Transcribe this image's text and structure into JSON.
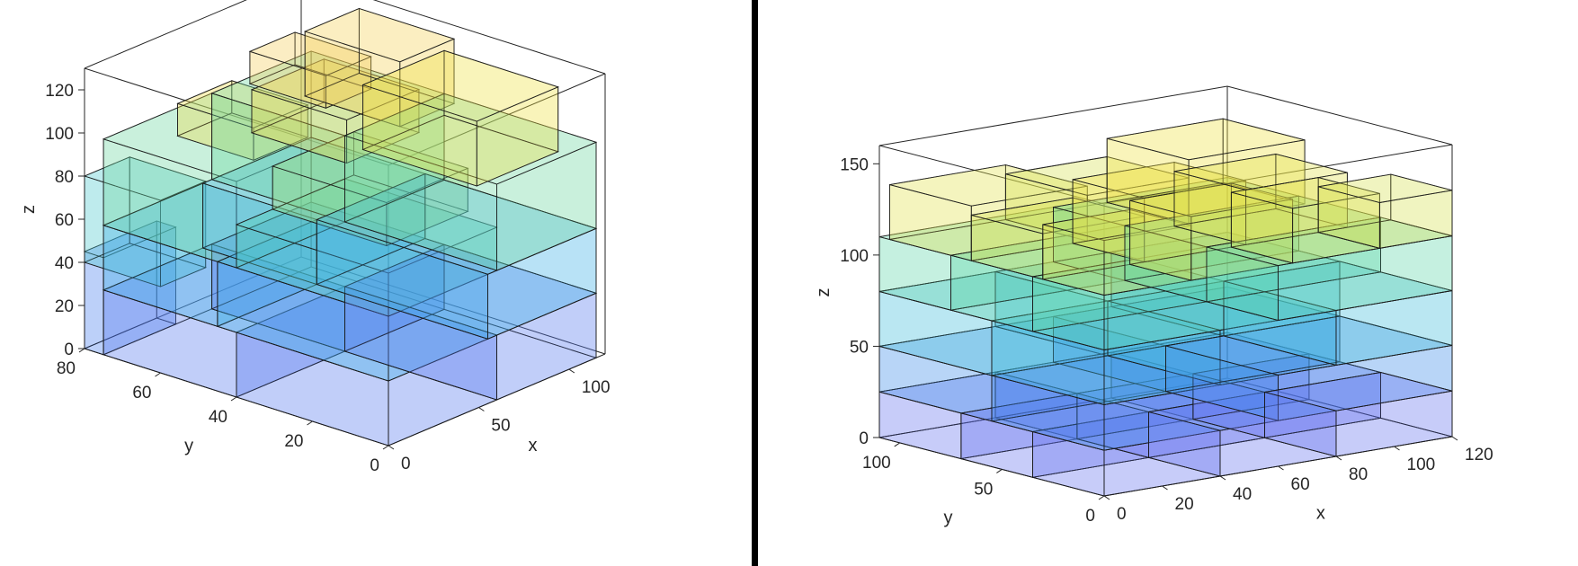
{
  "chart_data": [
    {
      "type": "3d-box-packing",
      "title": "",
      "xlabel": "x",
      "ylabel": "y",
      "zlabel": "z",
      "xlim": [
        0,
        120
      ],
      "ylim": [
        0,
        80
      ],
      "zlim": [
        0,
        130
      ],
      "xticks": [
        "0",
        "50",
        "100"
      ],
      "yticks": [
        "0",
        "20",
        "40",
        "60",
        "80"
      ],
      "zticks": [
        "0",
        "20",
        "40",
        "60",
        "80",
        "100",
        "120"
      ],
      "colormap": [
        "#7b6ef0",
        "#3d7ff0",
        "#3fbfe0",
        "#5fd8a8",
        "#f0e040",
        "#f7c070"
      ],
      "boxes": [
        {
          "x": 0,
          "y": 0,
          "z": 0,
          "dx": 60,
          "dy": 40,
          "dz": 30
        },
        {
          "x": 60,
          "y": 0,
          "z": 0,
          "dx": 55,
          "dy": 40,
          "dz": 30
        },
        {
          "x": 0,
          "y": 40,
          "z": 0,
          "dx": 60,
          "dy": 35,
          "dz": 30
        },
        {
          "x": 60,
          "y": 40,
          "z": 0,
          "dx": 55,
          "dy": 35,
          "dz": 30
        },
        {
          "x": 0,
          "y": 75,
          "z": 0,
          "dx": 40,
          "dy": 5,
          "dz": 45
        },
        {
          "x": 0,
          "y": 0,
          "z": 30,
          "dx": 55,
          "dy": 45,
          "dz": 30
        },
        {
          "x": 55,
          "y": 0,
          "z": 30,
          "dx": 60,
          "dy": 45,
          "dz": 30
        },
        {
          "x": 0,
          "y": 45,
          "z": 30,
          "dx": 55,
          "dy": 30,
          "dz": 30
        },
        {
          "x": 55,
          "y": 45,
          "z": 30,
          "dx": 60,
          "dy": 30,
          "dz": 30
        },
        {
          "x": 0,
          "y": 60,
          "z": 40,
          "dx": 25,
          "dy": 20,
          "dz": 40
        },
        {
          "x": 0,
          "y": 0,
          "z": 60,
          "dx": 60,
          "dy": 40,
          "dz": 20
        },
        {
          "x": 60,
          "y": 0,
          "z": 60,
          "dx": 55,
          "dy": 40,
          "dz": 40
        },
        {
          "x": 0,
          "y": 40,
          "z": 60,
          "dx": 60,
          "dy": 35,
          "dz": 40
        },
        {
          "x": 60,
          "y": 40,
          "z": 60,
          "dx": 55,
          "dy": 35,
          "dz": 40
        },
        {
          "x": 20,
          "y": 10,
          "z": 80,
          "dx": 45,
          "dy": 30,
          "dz": 20
        },
        {
          "x": 70,
          "y": 10,
          "z": 90,
          "dx": 45,
          "dy": 30,
          "dz": 30
        },
        {
          "x": 40,
          "y": 30,
          "z": 100,
          "dx": 40,
          "dy": 25,
          "dz": 20
        },
        {
          "x": 80,
          "y": 35,
          "z": 100,
          "dx": 30,
          "dy": 25,
          "dz": 30
        },
        {
          "x": 20,
          "y": 45,
          "z": 100,
          "dx": 30,
          "dy": 20,
          "dz": 15
        },
        {
          "x": 60,
          "y": 45,
          "z": 110,
          "dx": 25,
          "dy": 20,
          "dz": 15
        }
      ]
    },
    {
      "type": "3d-box-packing",
      "title": "",
      "xlabel": "x",
      "ylabel": "y",
      "zlabel": "z",
      "xlim": [
        0,
        120
      ],
      "ylim": [
        0,
        110
      ],
      "zlim": [
        0,
        160
      ],
      "xticks": [
        "0",
        "20",
        "40",
        "60",
        "80",
        "100",
        "120"
      ],
      "yticks": [
        "0",
        "50",
        "100"
      ],
      "zticks": [
        "0",
        "50",
        "100",
        "150"
      ],
      "colormap": [
        "#7b6ef0",
        "#3d7ff0",
        "#3fbfe0",
        "#5fd8a8",
        "#f0e040",
        "#f7c070"
      ],
      "boxes": [
        {
          "x": 0,
          "y": 0,
          "z": 0,
          "dx": 40,
          "dy": 35,
          "dz": 25
        },
        {
          "x": 40,
          "y": 0,
          "z": 0,
          "dx": 40,
          "dy": 35,
          "dz": 25
        },
        {
          "x": 80,
          "y": 0,
          "z": 0,
          "dx": 40,
          "dy": 35,
          "dz": 25
        },
        {
          "x": 0,
          "y": 35,
          "z": 0,
          "dx": 40,
          "dy": 35,
          "dz": 25
        },
        {
          "x": 40,
          "y": 35,
          "z": 0,
          "dx": 40,
          "dy": 35,
          "dz": 25
        },
        {
          "x": 80,
          "y": 35,
          "z": 0,
          "dx": 40,
          "dy": 35,
          "dz": 25
        },
        {
          "x": 0,
          "y": 70,
          "z": 0,
          "dx": 40,
          "dy": 40,
          "dz": 25
        },
        {
          "x": 40,
          "y": 70,
          "z": 0,
          "dx": 40,
          "dy": 40,
          "dz": 25
        },
        {
          "x": 80,
          "y": 70,
          "z": 0,
          "dx": 40,
          "dy": 40,
          "dz": 25
        },
        {
          "x": 0,
          "y": 0,
          "z": 25,
          "dx": 60,
          "dy": 55,
          "dz": 25
        },
        {
          "x": 60,
          "y": 0,
          "z": 25,
          "dx": 60,
          "dy": 55,
          "dz": 25
        },
        {
          "x": 0,
          "y": 55,
          "z": 25,
          "dx": 60,
          "dy": 55,
          "dz": 25
        },
        {
          "x": 60,
          "y": 55,
          "z": 25,
          "dx": 60,
          "dy": 55,
          "dz": 25
        },
        {
          "x": 0,
          "y": 0,
          "z": 50,
          "dx": 40,
          "dy": 55,
          "dz": 30
        },
        {
          "x": 40,
          "y": 0,
          "z": 50,
          "dx": 40,
          "dy": 55,
          "dz": 30
        },
        {
          "x": 80,
          "y": 0,
          "z": 50,
          "dx": 40,
          "dy": 55,
          "dz": 30
        },
        {
          "x": 0,
          "y": 55,
          "z": 50,
          "dx": 40,
          "dy": 55,
          "dz": 30
        },
        {
          "x": 40,
          "y": 55,
          "z": 50,
          "dx": 40,
          "dy": 55,
          "dz": 30
        },
        {
          "x": 80,
          "y": 55,
          "z": 50,
          "dx": 40,
          "dy": 55,
          "dz": 30
        },
        {
          "x": 0,
          "y": 0,
          "z": 80,
          "dx": 60,
          "dy": 35,
          "dz": 30
        },
        {
          "x": 60,
          "y": 0,
          "z": 80,
          "dx": 60,
          "dy": 35,
          "dz": 30
        },
        {
          "x": 0,
          "y": 35,
          "z": 80,
          "dx": 60,
          "dy": 40,
          "dz": 30
        },
        {
          "x": 60,
          "y": 35,
          "z": 80,
          "dx": 60,
          "dy": 40,
          "dz": 30
        },
        {
          "x": 0,
          "y": 75,
          "z": 80,
          "dx": 60,
          "dy": 35,
          "dz": 30
        },
        {
          "x": 60,
          "y": 75,
          "z": 80,
          "dx": 60,
          "dy": 35,
          "dz": 30
        },
        {
          "x": 0,
          "y": 0,
          "z": 110,
          "dx": 30,
          "dy": 30,
          "dz": 30
        },
        {
          "x": 30,
          "y": 0,
          "z": 110,
          "dx": 35,
          "dy": 30,
          "dz": 35
        },
        {
          "x": 65,
          "y": 0,
          "z": 110,
          "dx": 30,
          "dy": 30,
          "dz": 30
        },
        {
          "x": 95,
          "y": 0,
          "z": 110,
          "dx": 25,
          "dy": 30,
          "dz": 25
        },
        {
          "x": 0,
          "y": 30,
          "z": 110,
          "dx": 35,
          "dy": 35,
          "dz": 25
        },
        {
          "x": 35,
          "y": 30,
          "z": 110,
          "dx": 35,
          "dy": 35,
          "dz": 35
        },
        {
          "x": 70,
          "y": 30,
          "z": 110,
          "dx": 35,
          "dy": 35,
          "dz": 30
        },
        {
          "x": 0,
          "y": 65,
          "z": 110,
          "dx": 40,
          "dy": 40,
          "dz": 30
        },
        {
          "x": 40,
          "y": 65,
          "z": 110,
          "dx": 35,
          "dy": 40,
          "dz": 25
        },
        {
          "x": 75,
          "y": 65,
          "z": 110,
          "dx": 40,
          "dy": 40,
          "dz": 35
        }
      ]
    }
  ]
}
